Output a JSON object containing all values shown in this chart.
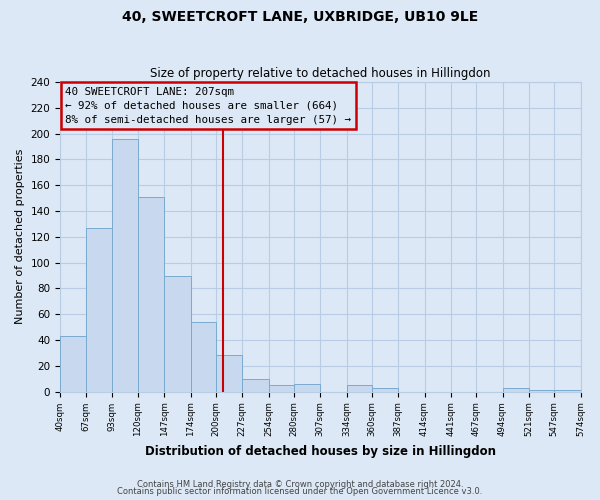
{
  "title": "40, SWEETCROFT LANE, UXBRIDGE, UB10 9LE",
  "subtitle": "Size of property relative to detached houses in Hillingdon",
  "xlabel": "Distribution of detached houses by size in Hillingdon",
  "ylabel": "Number of detached properties",
  "bar_color": "#c8d8ee",
  "bar_edge_color": "#7aaad0",
  "background_color": "#dce8f5",
  "plot_bg_color": "#dce8f5",
  "grid_color": "#b8cce4",
  "bins": [
    40,
    67,
    93,
    120,
    147,
    174,
    200,
    227,
    254,
    280,
    307,
    334,
    360,
    387,
    414,
    441,
    467,
    494,
    521,
    547,
    574
  ],
  "counts": [
    43,
    127,
    196,
    151,
    90,
    54,
    28,
    10,
    5,
    6,
    0,
    5,
    3,
    0,
    0,
    0,
    0,
    3,
    1,
    1
  ],
  "tick_labels": [
    "40sqm",
    "67sqm",
    "93sqm",
    "120sqm",
    "147sqm",
    "174sqm",
    "200sqm",
    "227sqm",
    "254sqm",
    "280sqm",
    "307sqm",
    "334sqm",
    "360sqm",
    "387sqm",
    "414sqm",
    "441sqm",
    "467sqm",
    "494sqm",
    "521sqm",
    "547sqm",
    "574sqm"
  ],
  "property_size": 207,
  "vline_color": "#cc0000",
  "annotation_text_line1": "40 SWEETCROFT LANE: 207sqm",
  "annotation_text_line2": "← 92% of detached houses are smaller (664)",
  "annotation_text_line3": "8% of semi-detached houses are larger (57) →",
  "ylim": [
    0,
    240
  ],
  "yticks": [
    0,
    20,
    40,
    60,
    80,
    100,
    120,
    140,
    160,
    180,
    200,
    220,
    240
  ],
  "footnote1": "Contains HM Land Registry data © Crown copyright and database right 2024.",
  "footnote2": "Contains public sector information licensed under the Open Government Licence v3.0."
}
